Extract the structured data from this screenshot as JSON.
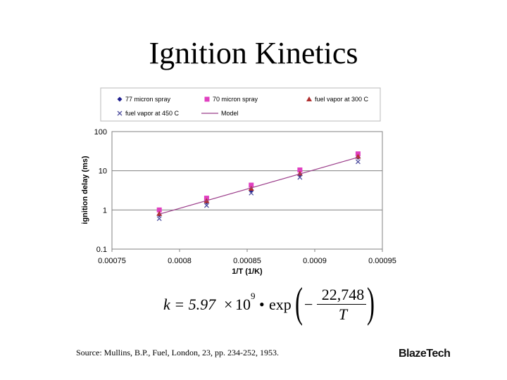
{
  "slide": {
    "title": "Ignition Kinetics",
    "source": "Source: Mullins, B.P., Fuel, London, 23, pp. 234-252, 1953.",
    "logo_text": "BlazeTech"
  },
  "equation": {
    "lhs": "k = 5.97",
    "times": "×",
    "base": "10",
    "exponent": "9",
    "bullet": "•",
    "func": "exp",
    "minus": "−",
    "numerator": "22,748",
    "denominator": "T"
  },
  "chart_data": {
    "type": "scatter",
    "xlabel": "1/T (1/K)",
    "ylabel": "ignition delay (ms)",
    "xlim": [
      0.00075,
      0.00095
    ],
    "ylim": [
      0.1,
      100
    ],
    "y_scale": "log",
    "xticks": [
      "0.00075",
      "0.0008",
      "0.00085",
      "0.0009",
      "0.00095"
    ],
    "yticks": [
      "0.1",
      "1",
      "10",
      "100"
    ],
    "grid": "horizontal",
    "legend_position": "top",
    "series": [
      {
        "name": "77 micron spray",
        "marker": "diamond",
        "color": "#1f1f8f",
        "x": [
          0.000785,
          0.00082,
          0.000853,
          0.000889,
          0.000932
        ],
        "y": [
          0.75,
          1.6,
          3.2,
          8.0,
          22.0
        ]
      },
      {
        "name": "70 micron spray",
        "marker": "square",
        "color": "#e040c0",
        "x": [
          0.000785,
          0.00082,
          0.000853,
          0.000889,
          0.000932
        ],
        "y": [
          1.0,
          2.0,
          4.3,
          10.5,
          27.0
        ]
      },
      {
        "name": "fuel vapor at 300 C",
        "marker": "triangle",
        "color": "#b03030",
        "x": [
          0.000785,
          0.00082,
          0.000853,
          0.000889,
          0.000932
        ],
        "y": [
          0.8,
          1.7,
          3.5,
          8.5,
          23.0
        ]
      },
      {
        "name": "fuel vapor at 450 C",
        "marker": "x",
        "color": "#5050a0",
        "x": [
          0.000785,
          0.00082,
          0.000853,
          0.000889,
          0.000932
        ],
        "y": [
          0.6,
          1.3,
          2.7,
          6.8,
          17.0
        ]
      },
      {
        "name": "Model",
        "marker": "line",
        "color": "#9b3d8a",
        "x": [
          0.000785,
          0.000932
        ],
        "y": [
          0.78,
          22.0
        ]
      }
    ]
  }
}
